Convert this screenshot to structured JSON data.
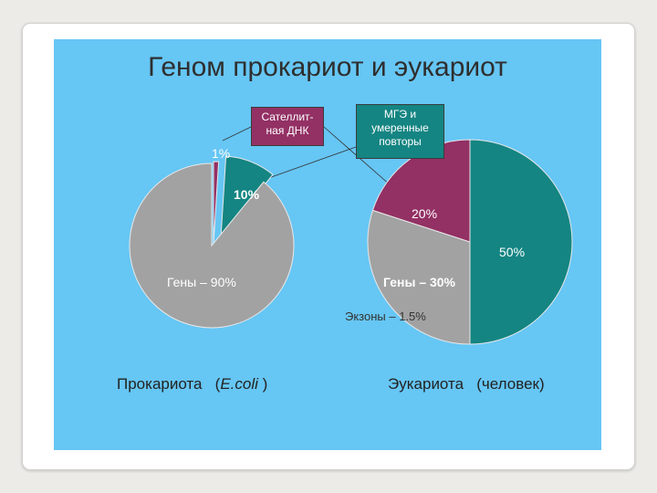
{
  "title": "Геном прокариот и эукариот",
  "colors": {
    "slide_background": "#66c6f4",
    "genes": "#a2a2a2",
    "satellite_dna": "#933064",
    "mge": "#148582"
  },
  "callouts": {
    "satellite": "Сателлит-\nная ДНК",
    "mge": "МГЭ и\nумеренные\nповторы"
  },
  "captions": {
    "prokaryote": "Прокариота",
    "prokaryote_species_open": "(",
    "prokaryote_species": "E.coli",
    "prokaryote_species_close": ")",
    "eukaryote": "Эукариота",
    "eukaryote_species": "(человек)"
  },
  "chart_data": [
    {
      "type": "pie",
      "title": "Прокариота (E.coli )",
      "slices": [
        {
          "category": "Сателлитная ДНК",
          "value": 1,
          "label": "1%",
          "color": "#933064"
        },
        {
          "category": "МГЭ и умеренные повторы",
          "value": 10,
          "label": "10%",
          "color": "#148582"
        },
        {
          "category": "Гены",
          "value": 90,
          "label": "Гены – 90%",
          "color": "#a2a2a2"
        }
      ]
    },
    {
      "type": "pie",
      "title": "Эукариота (человек)",
      "slices": [
        {
          "category": "МГЭ и умеренные повторы",
          "value": 50,
          "label": "50%",
          "color": "#148582"
        },
        {
          "category": "Гены",
          "value": 30,
          "label": "Гены – 30%",
          "color": "#a2a2a2"
        },
        {
          "category": "Сателлитная ДНК",
          "value": 20,
          "label": "20%",
          "color": "#933064"
        }
      ],
      "annotation": "Экзоны – 1.5%"
    }
  ]
}
